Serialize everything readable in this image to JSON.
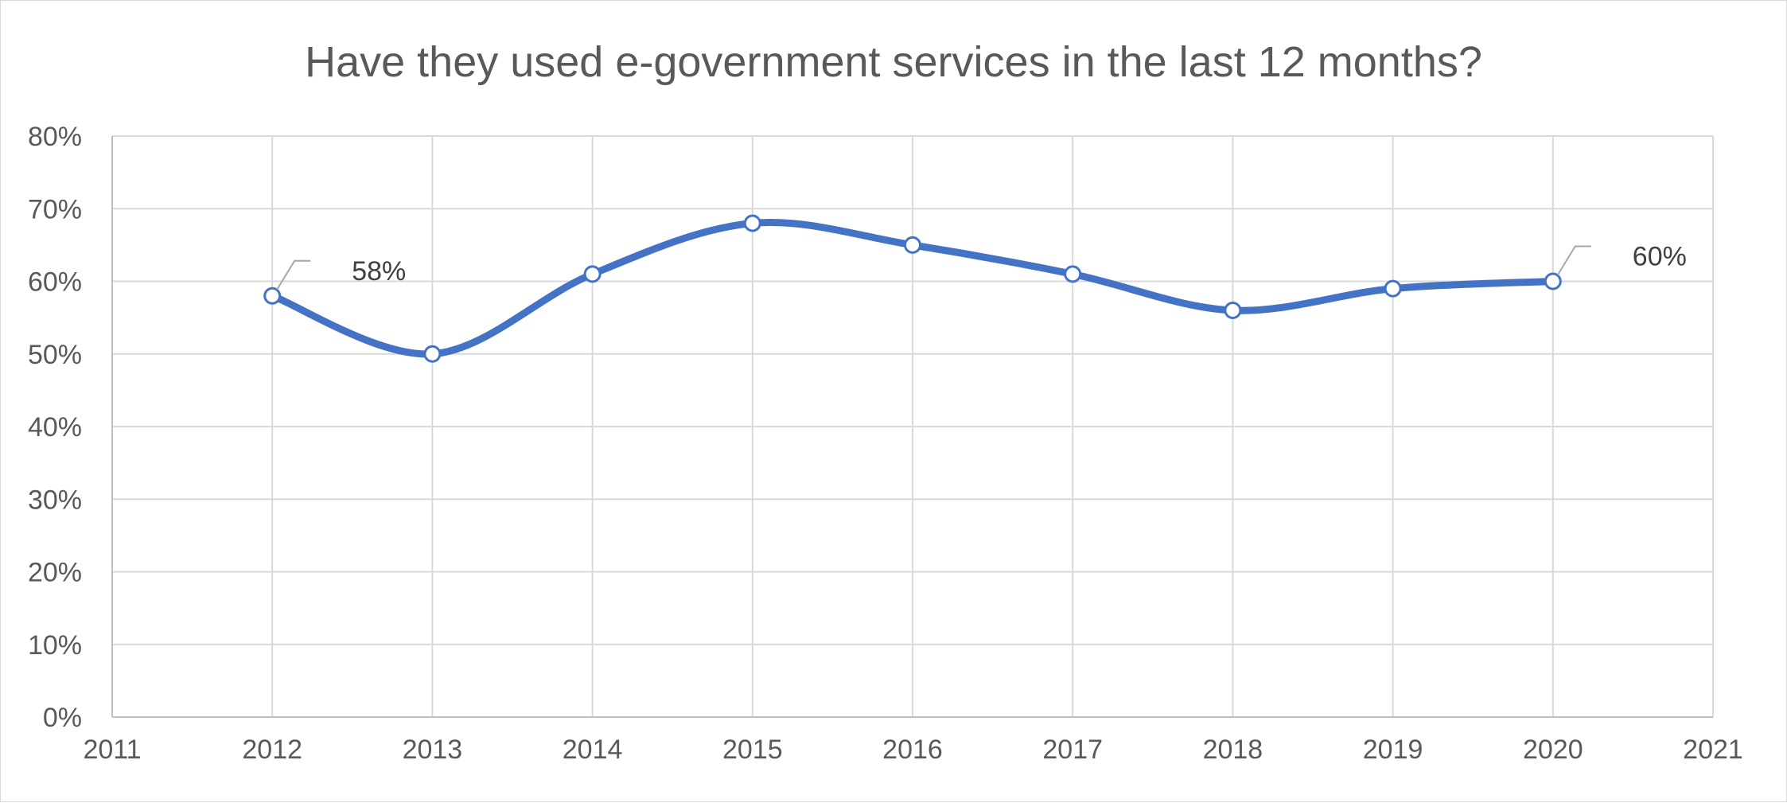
{
  "chart_data": {
    "type": "line",
    "title": "Have they used e-government services in the last 12 months?",
    "xlabel": "",
    "ylabel": "",
    "x": [
      2012,
      2013,
      2014,
      2015,
      2016,
      2017,
      2018,
      2019,
      2020
    ],
    "series": [
      {
        "values": [
          0.58,
          0.5,
          0.61,
          0.68,
          0.65,
          0.61,
          0.56,
          0.59,
          0.6
        ],
        "color": "#4472c4",
        "smooth": true
      }
    ],
    "xlim": [
      2011,
      2021
    ],
    "xticks": [
      2011,
      2012,
      2013,
      2014,
      2015,
      2016,
      2017,
      2018,
      2019,
      2020,
      2021
    ],
    "xtick_labels": [
      "2011",
      "2012",
      "2013",
      "2014",
      "2015",
      "2016",
      "2017",
      "2018",
      "2019",
      "2020",
      "2021"
    ],
    "ylim": [
      0,
      0.8
    ],
    "yticks": [
      0,
      0.1,
      0.2,
      0.3,
      0.4,
      0.5,
      0.6,
      0.7,
      0.8
    ],
    "ytick_labels": [
      "0%",
      "10%",
      "20%",
      "30%",
      "40%",
      "50%",
      "60%",
      "70%",
      "80%"
    ],
    "grid": true,
    "legend": "none",
    "data_labels": [
      {
        "x": 2012,
        "y": 0.58,
        "text": "58%"
      },
      {
        "x": 2020,
        "y": 0.6,
        "text": "60%"
      }
    ]
  }
}
